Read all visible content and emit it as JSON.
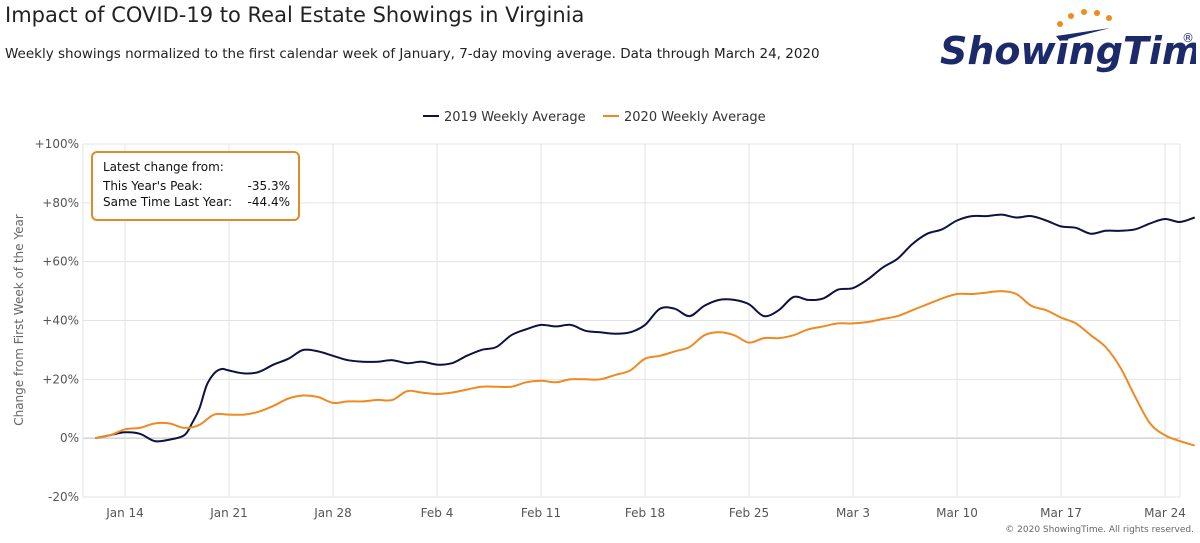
{
  "title": "Impact of COVID-19 to Real Estate Showings in Virginia",
  "subtitle": "Weekly showings normalized to the first calendar week of January, 7-day moving average. Data through March 24, 2020",
  "logo": {
    "text": "ShowingTime",
    "mark": "®",
    "color": "#1c2a6b",
    "accent": "#f08c1e"
  },
  "copyright": "© 2020 ShowingTime. All rights reserved.",
  "callout": {
    "header": "Latest change from:",
    "rows": [
      {
        "label": "This Year's Peak:",
        "value": "-35.3%"
      },
      {
        "label": "Same Time Last Year:",
        "value": "-44.4%"
      }
    ]
  },
  "chart_data": {
    "type": "line",
    "ylabel": "Change from First Week of the Year",
    "ylim": [
      -20,
      100
    ],
    "yticks": [
      "+100%",
      "+80%",
      "+60%",
      "+40%",
      "+20%",
      "0%",
      "-20%"
    ],
    "ytick_values": [
      100,
      80,
      60,
      40,
      20,
      0,
      -20
    ],
    "x_range_days": [
      11,
      84
    ],
    "xticks": [
      {
        "label": "Jan 14",
        "day": 14
      },
      {
        "label": "Jan 21",
        "day": 21
      },
      {
        "label": "Jan 28",
        "day": 28
      },
      {
        "label": "Feb 4",
        "day": 35
      },
      {
        "label": "Feb 11",
        "day": 42
      },
      {
        "label": "Feb 18",
        "day": 49
      },
      {
        "label": "Feb 25",
        "day": 56
      },
      {
        "label": "Mar 3",
        "day": 63
      },
      {
        "label": "Mar 10",
        "day": 70
      },
      {
        "label": "Mar 17",
        "day": 77
      },
      {
        "label": "Mar 24",
        "day": 84
      }
    ],
    "grid": true,
    "legend_position": "top-center",
    "series": [
      {
        "name": "2019 Weekly Average",
        "color": "#0d1240",
        "points": [
          [
            12,
            0
          ],
          [
            13,
            1
          ],
          [
            14,
            2
          ],
          [
            15,
            1.5
          ],
          [
            16,
            -1
          ],
          [
            17,
            -0.5
          ],
          [
            18,
            1
          ],
          [
            18.5,
            5
          ],
          [
            19,
            10
          ],
          [
            19.5,
            18
          ],
          [
            20,
            22
          ],
          [
            20.5,
            23.5
          ],
          [
            21,
            23
          ],
          [
            22,
            22
          ],
          [
            23,
            22.5
          ],
          [
            24,
            25
          ],
          [
            25,
            27
          ],
          [
            26,
            30
          ],
          [
            27,
            29.5
          ],
          [
            28,
            28
          ],
          [
            29,
            26.5
          ],
          [
            30,
            26
          ],
          [
            31,
            26
          ],
          [
            32,
            26.5
          ],
          [
            33,
            25.5
          ],
          [
            34,
            26
          ],
          [
            35,
            25
          ],
          [
            36,
            25.5
          ],
          [
            37,
            28
          ],
          [
            38,
            30
          ],
          [
            39,
            31
          ],
          [
            40,
            35
          ],
          [
            41,
            37
          ],
          [
            42,
            38.5
          ],
          [
            43,
            38
          ],
          [
            44,
            38.5
          ],
          [
            45,
            36.5
          ],
          [
            46,
            36
          ],
          [
            47,
            35.5
          ],
          [
            48,
            36
          ],
          [
            49,
            38.5
          ],
          [
            50,
            44
          ],
          [
            51,
            44
          ],
          [
            52,
            41.5
          ],
          [
            53,
            45
          ],
          [
            54,
            47
          ],
          [
            55,
            47
          ],
          [
            56,
            45.5
          ],
          [
            57,
            41.5
          ],
          [
            58,
            43.5
          ],
          [
            59,
            48
          ],
          [
            60,
            47
          ],
          [
            61,
            47.5
          ],
          [
            62,
            50.5
          ],
          [
            63,
            51
          ],
          [
            64,
            54
          ],
          [
            65,
            58
          ],
          [
            66,
            61
          ],
          [
            67,
            66
          ],
          [
            68,
            69.5
          ],
          [
            69,
            71
          ],
          [
            70,
            74
          ],
          [
            71,
            75.5
          ],
          [
            72,
            75.5
          ],
          [
            73,
            76
          ],
          [
            74,
            75
          ],
          [
            75,
            75.5
          ],
          [
            76,
            74
          ],
          [
            77,
            72
          ],
          [
            78,
            71.5
          ],
          [
            79,
            69.5
          ],
          [
            80,
            70.5
          ],
          [
            81,
            70.5
          ],
          [
            82,
            71
          ],
          [
            83,
            73
          ],
          [
            84,
            74.5
          ],
          [
            85,
            73.5
          ],
          [
            86,
            75
          ]
        ]
      },
      {
        "name": "2020 Weekly Average",
        "color": "#ef8a22",
        "points": [
          [
            12,
            0
          ],
          [
            13,
            1
          ],
          [
            14,
            3
          ],
          [
            15,
            3.5
          ],
          [
            16,
            5
          ],
          [
            17,
            5
          ],
          [
            18,
            3.5
          ],
          [
            19,
            4.5
          ],
          [
            20,
            8
          ],
          [
            21,
            8
          ],
          [
            22,
            8
          ],
          [
            23,
            9
          ],
          [
            24,
            11
          ],
          [
            25,
            13.5
          ],
          [
            26,
            14.5
          ],
          [
            27,
            14
          ],
          [
            28,
            12
          ],
          [
            29,
            12.5
          ],
          [
            30,
            12.5
          ],
          [
            31,
            13
          ],
          [
            32,
            13
          ],
          [
            33,
            16
          ],
          [
            34,
            15.5
          ],
          [
            35,
            15
          ],
          [
            36,
            15.5
          ],
          [
            37,
            16.5
          ],
          [
            38,
            17.5
          ],
          [
            39,
            17.5
          ],
          [
            40,
            17.5
          ],
          [
            41,
            19
          ],
          [
            42,
            19.5
          ],
          [
            43,
            19
          ],
          [
            44,
            20
          ],
          [
            45,
            20
          ],
          [
            46,
            20
          ],
          [
            47,
            21.5
          ],
          [
            48,
            23
          ],
          [
            49,
            27
          ],
          [
            50,
            28
          ],
          [
            51,
            29.5
          ],
          [
            52,
            31
          ],
          [
            53,
            35
          ],
          [
            54,
            36
          ],
          [
            55,
            35
          ],
          [
            56,
            32.5
          ],
          [
            57,
            34
          ],
          [
            58,
            34
          ],
          [
            59,
            35
          ],
          [
            60,
            37
          ],
          [
            61,
            38
          ],
          [
            62,
            39
          ],
          [
            63,
            39
          ],
          [
            64,
            39.5
          ],
          [
            65,
            40.5
          ],
          [
            66,
            41.5
          ],
          [
            67,
            43.5
          ],
          [
            68,
            45.5
          ],
          [
            69,
            47.5
          ],
          [
            70,
            49
          ],
          [
            71,
            49
          ],
          [
            72,
            49.5
          ],
          [
            73,
            50
          ],
          [
            74,
            49
          ],
          [
            75,
            45
          ],
          [
            76,
            43.5
          ],
          [
            77,
            41
          ],
          [
            78,
            39
          ],
          [
            79,
            35
          ],
          [
            80,
            31
          ],
          [
            81,
            24
          ],
          [
            82,
            14
          ],
          [
            83,
            5
          ],
          [
            84,
            1
          ],
          [
            85,
            -1
          ],
          [
            86,
            -2.5
          ]
        ]
      }
    ]
  }
}
